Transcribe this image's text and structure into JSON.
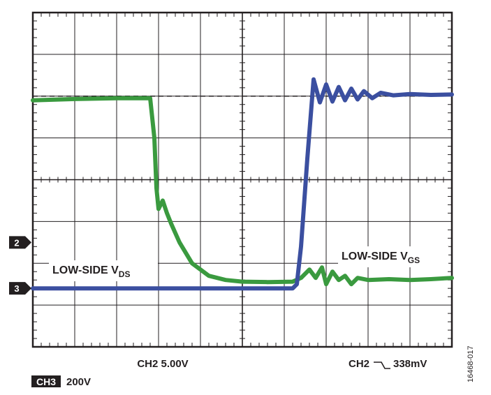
{
  "chart_data": {
    "type": "line",
    "title": "",
    "xlabel": "",
    "ylabel": "",
    "grid": true,
    "grid_divisions": {
      "x": 10,
      "y": 8
    },
    "series": [
      {
        "name": "LOW-SIDE V",
        "name_sub": "DS",
        "channel": "3",
        "color": "#3a9a3f",
        "x_div": [
          0,
          1,
          2,
          2.8,
          2.9,
          2.95,
          3.0,
          3.1,
          3.2,
          3.3,
          3.5,
          3.8,
          4.2,
          4.6,
          5.0,
          5.6,
          6.2,
          6.4,
          6.6,
          6.75,
          6.9,
          7.0,
          7.15,
          7.3,
          7.45,
          7.6,
          7.75,
          8.0,
          8.5,
          9.0,
          9.5,
          10.0
        ],
        "y_div": [
          5.9,
          5.93,
          5.95,
          5.95,
          5.0,
          3.8,
          3.3,
          3.5,
          3.2,
          2.95,
          2.5,
          2.0,
          1.7,
          1.6,
          1.56,
          1.55,
          1.56,
          1.65,
          1.85,
          1.65,
          1.9,
          1.5,
          1.8,
          1.6,
          1.7,
          1.5,
          1.65,
          1.6,
          1.62,
          1.6,
          1.62,
          1.65
        ]
      },
      {
        "name": "LOW-SIDE V",
        "name_sub": "GS",
        "channel": "2",
        "color": "#3b4fa0",
        "x_div": [
          0,
          5,
          6.2,
          6.3,
          6.4,
          6.55,
          6.7,
          6.85,
          7.0,
          7.15,
          7.3,
          7.45,
          7.6,
          7.75,
          7.9,
          8.1,
          8.3,
          8.6,
          9.0,
          9.5,
          10.0
        ],
        "y_div": [
          1.4,
          1.4,
          1.4,
          1.5,
          2.4,
          4.5,
          6.4,
          5.85,
          6.28,
          5.87,
          6.22,
          5.9,
          6.18,
          5.92,
          6.12,
          5.95,
          6.08,
          6.02,
          6.05,
          6.03,
          6.04
        ]
      }
    ],
    "reference_lines": [
      {
        "y_div": 6.0,
        "style": "dashed"
      }
    ],
    "channel_markers": [
      {
        "label": "2",
        "y_div": 2.5
      },
      {
        "label": "3",
        "y_div": 1.4
      }
    ],
    "annotations": {
      "bottom_center": "CH2 5.00V",
      "bottom_right_prefix": "CH2",
      "bottom_right_value": "338mV",
      "bottom_left_badge": "CH3",
      "bottom_left_value": "200V",
      "figure_id": "16468-017"
    }
  }
}
